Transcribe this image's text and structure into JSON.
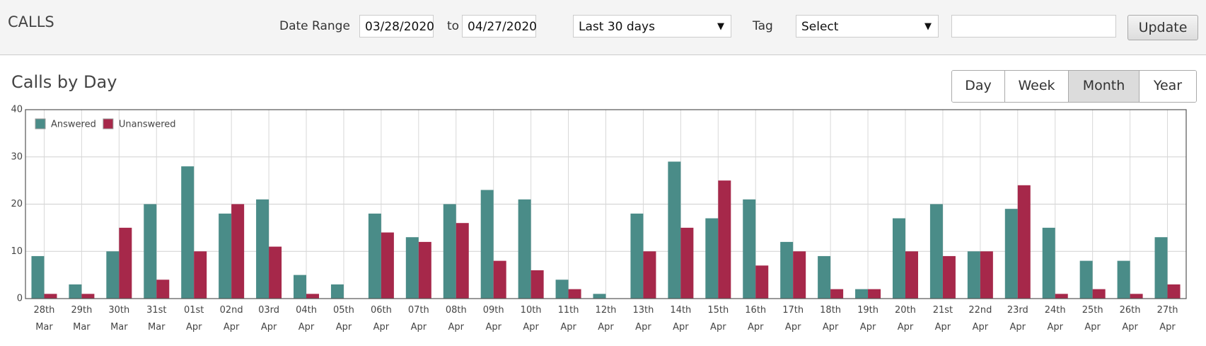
{
  "header": {
    "title": "CALLS",
    "date_range_label": "Date Range",
    "start_date": "03/28/2020",
    "to_label": "to",
    "end_date": "04/27/2020",
    "range_select": "Last 30 days",
    "tag_label": "Tag",
    "tag_select": "Select",
    "update_button": "Update"
  },
  "section_title": "Calls by Day",
  "period_buttons": [
    "Day",
    "Week",
    "Month",
    "Year"
  ],
  "chart_data": {
    "type": "bar",
    "categories": [
      "28th Mar",
      "29th Mar",
      "30th Mar",
      "31st Mar",
      "01st Apr",
      "02nd Apr",
      "03rd Apr",
      "04th Apr",
      "05th Apr",
      "06th Apr",
      "07th Apr",
      "08th Apr",
      "09th Apr",
      "10th Apr",
      "11th Apr",
      "12th Apr",
      "13th Apr",
      "14th Apr",
      "15th Apr",
      "16th Apr",
      "17th Apr",
      "18th Apr",
      "19th Apr",
      "20th Apr",
      "21st Apr",
      "22nd Apr",
      "23rd Apr",
      "24th Apr",
      "25th Apr",
      "26th Apr",
      "27th Apr"
    ],
    "series": [
      {
        "name": "Answered",
        "color": "#4a8c88",
        "values": [
          9,
          3,
          10,
          20,
          28,
          18,
          21,
          5,
          3,
          18,
          13,
          20,
          23,
          21,
          4,
          1,
          18,
          29,
          17,
          21,
          12,
          9,
          2,
          17,
          20,
          10,
          19,
          15,
          8,
          8,
          13
        ]
      },
      {
        "name": "Unanswered",
        "color": "#a6284a",
        "values": [
          1,
          1,
          15,
          4,
          10,
          20,
          11,
          1,
          0,
          14,
          12,
          16,
          8,
          6,
          2,
          0,
          10,
          15,
          25,
          7,
          10,
          2,
          2,
          10,
          9,
          10,
          24,
          1,
          2,
          1,
          3
        ]
      }
    ],
    "ylim": [
      0,
      40
    ],
    "yticks": [
      0,
      10,
      20,
      30,
      40
    ],
    "grid": true,
    "legend": "top-left"
  }
}
